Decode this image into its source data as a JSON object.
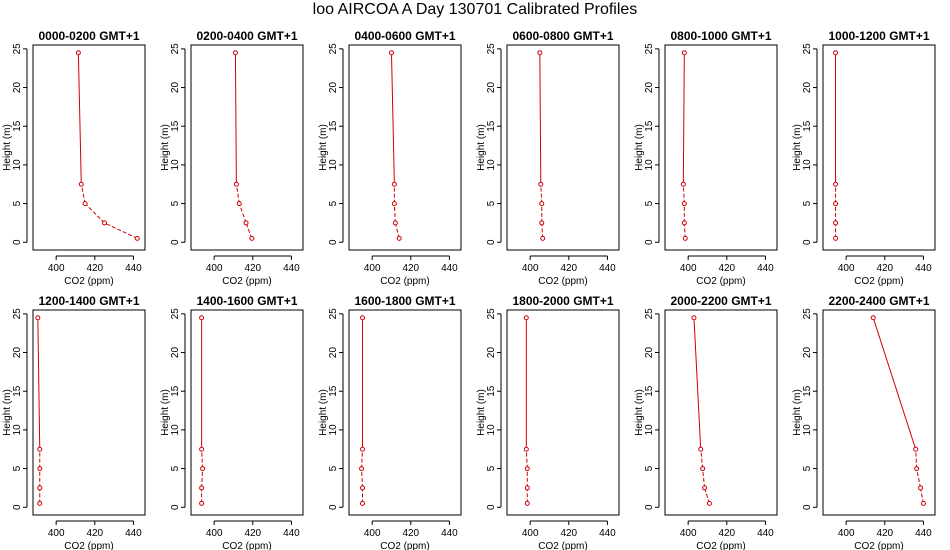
{
  "title": "loo AIRCOA A  Day 130701  Calibrated Profiles",
  "colors": {
    "profile": "#d00000",
    "axis": "#000000",
    "background": "#ffffff"
  },
  "chart_data": [
    {
      "type": "line",
      "title": "0000-0200 GMT+1",
      "xlabel": "CO2 (ppm)",
      "ylabel": "Height (m)",
      "xlim": [
        388,
        446
      ],
      "ylim": [
        -1,
        25.5
      ],
      "xticks": [
        400,
        420,
        440
      ],
      "yticks": [
        0,
        5,
        10,
        15,
        20,
        25
      ],
      "x": [
        442.0,
        425.0,
        415.0,
        413.0,
        411.5
      ],
      "y": [
        0.5,
        2.5,
        5.0,
        7.5,
        24.5
      ]
    },
    {
      "type": "line",
      "title": "0200-0400 GMT+1",
      "xlabel": "CO2 (ppm)",
      "ylabel": "Height (m)",
      "xlim": [
        388,
        446
      ],
      "ylim": [
        -1,
        25.5
      ],
      "xticks": [
        400,
        420,
        440
      ],
      "yticks": [
        0,
        5,
        10,
        15,
        20,
        25
      ],
      "x": [
        419.5,
        416.5,
        413.0,
        411.5,
        411.0
      ],
      "y": [
        0.5,
        2.5,
        5.0,
        7.5,
        24.5
      ]
    },
    {
      "type": "line",
      "title": "0400-0600 GMT+1",
      "xlabel": "CO2 (ppm)",
      "ylabel": "Height (m)",
      "xlim": [
        388,
        446
      ],
      "ylim": [
        -1,
        25.5
      ],
      "xticks": [
        400,
        420,
        440
      ],
      "yticks": [
        0,
        5,
        10,
        15,
        20,
        25
      ],
      "x": [
        414.0,
        412.0,
        411.5,
        411.5,
        410.0
      ],
      "y": [
        0.5,
        2.5,
        5.0,
        7.5,
        24.5
      ]
    },
    {
      "type": "line",
      "title": "0600-0800 GMT+1",
      "xlabel": "CO2 (ppm)",
      "ylabel": "Height (m)",
      "xlim": [
        388,
        446
      ],
      "ylim": [
        -1,
        25.5
      ],
      "xticks": [
        400,
        420,
        440
      ],
      "yticks": [
        0,
        5,
        10,
        15,
        20,
        25
      ],
      "x": [
        406.5,
        406.0,
        406.0,
        405.5,
        405.0
      ],
      "y": [
        0.5,
        2.5,
        5.0,
        7.5,
        24.5
      ]
    },
    {
      "type": "line",
      "title": "0800-1000 GMT+1",
      "xlabel": "CO2 (ppm)",
      "ylabel": "Height (m)",
      "xlim": [
        388,
        446
      ],
      "ylim": [
        -1,
        25.5
      ],
      "xticks": [
        400,
        420,
        440
      ],
      "yticks": [
        0,
        5,
        10,
        15,
        20,
        25
      ],
      "x": [
        398.5,
        398.0,
        398.0,
        397.5,
        398.0
      ],
      "y": [
        0.5,
        2.5,
        5.0,
        7.5,
        24.5
      ]
    },
    {
      "type": "line",
      "title": "1000-1200 GMT+1",
      "xlabel": "CO2 (ppm)",
      "ylabel": "Height (m)",
      "xlim": [
        388,
        446
      ],
      "ylim": [
        -1,
        25.5
      ],
      "xticks": [
        400,
        420,
        440
      ],
      "yticks": [
        0,
        5,
        10,
        15,
        20,
        25
      ],
      "x": [
        394.5,
        394.5,
        394.5,
        394.5,
        394.5
      ],
      "y": [
        0.5,
        2.5,
        5.0,
        7.5,
        24.5
      ]
    },
    {
      "type": "line",
      "title": "1200-1400 GMT+1",
      "xlabel": "CO2 (ppm)",
      "ylabel": "Height (m)",
      "xlim": [
        388,
        446
      ],
      "ylim": [
        -1,
        25.5
      ],
      "xticks": [
        400,
        420,
        440
      ],
      "yticks": [
        0,
        5,
        10,
        15,
        20,
        25
      ],
      "x": [
        391.5,
        391.5,
        391.5,
        391.5,
        390.5
      ],
      "y": [
        0.5,
        2.5,
        5.0,
        7.5,
        24.5
      ]
    },
    {
      "type": "line",
      "title": "1400-1600 GMT+1",
      "xlabel": "CO2 (ppm)",
      "ylabel": "Height (m)",
      "xlim": [
        388,
        446
      ],
      "ylim": [
        -1,
        25.5
      ],
      "xticks": [
        400,
        420,
        440
      ],
      "yticks": [
        0,
        5,
        10,
        15,
        20,
        25
      ],
      "x": [
        393.5,
        393.5,
        394.0,
        393.5,
        393.5
      ],
      "y": [
        0.5,
        2.5,
        5.0,
        7.5,
        24.5
      ]
    },
    {
      "type": "line",
      "title": "1600-1800 GMT+1",
      "xlabel": "CO2 (ppm)",
      "ylabel": "Height (m)",
      "xlim": [
        388,
        446
      ],
      "ylim": [
        -1,
        25.5
      ],
      "xticks": [
        400,
        420,
        440
      ],
      "yticks": [
        0,
        5,
        10,
        15,
        20,
        25
      ],
      "x": [
        395.0,
        395.0,
        394.5,
        395.0,
        395.0
      ],
      "y": [
        0.5,
        2.5,
        5.0,
        7.5,
        24.5
      ]
    },
    {
      "type": "line",
      "title": "1800-2000 GMT+1",
      "xlabel": "CO2 (ppm)",
      "ylabel": "Height (m)",
      "xlim": [
        388,
        446
      ],
      "ylim": [
        -1,
        25.5
      ],
      "xticks": [
        400,
        420,
        440
      ],
      "yticks": [
        0,
        5,
        10,
        15,
        20,
        25
      ],
      "x": [
        398.5,
        398.5,
        398.5,
        398.0,
        398.0
      ],
      "y": [
        0.5,
        2.5,
        5.0,
        7.5,
        24.5
      ]
    },
    {
      "type": "line",
      "title": "2000-2200 GMT+1",
      "xlabel": "CO2 (ppm)",
      "ylabel": "Height (m)",
      "xlim": [
        388,
        446
      ],
      "ylim": [
        -1,
        25.5
      ],
      "xticks": [
        400,
        420,
        440
      ],
      "yticks": [
        0,
        5,
        10,
        15,
        20,
        25
      ],
      "x": [
        411.0,
        408.5,
        407.5,
        406.5,
        403.0
      ],
      "y": [
        0.5,
        2.5,
        5.0,
        7.5,
        24.5
      ]
    },
    {
      "type": "line",
      "title": "2200-2400 GMT+1",
      "xlabel": "CO2 (ppm)",
      "ylabel": "Height (m)",
      "xlim": [
        388,
        446
      ],
      "ylim": [
        -1,
        25.5
      ],
      "xticks": [
        400,
        420,
        440
      ],
      "yticks": [
        0,
        5,
        10,
        15,
        20,
        25
      ],
      "x": [
        440.0,
        438.5,
        436.5,
        436.0,
        414.0
      ],
      "y": [
        0.5,
        2.5,
        5.0,
        7.5,
        24.5
      ]
    }
  ]
}
